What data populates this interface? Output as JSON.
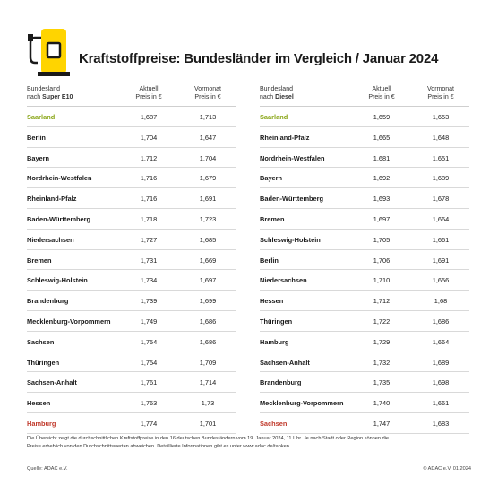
{
  "title": "Kraftstoffpreise: Bundesländer im Vergleich / Januar 2024",
  "icon": "fuel-pump-icon",
  "colors": {
    "accent_yellow": "#FFD400",
    "best": "#8AA618",
    "worst": "#C0392B"
  },
  "left": {
    "header": {
      "col1_line1": "Bundesland",
      "col1_line2": "nach",
      "col1_fuel": "Super E10",
      "col2_line1": "Aktuell",
      "col2_line2": "Preis in €",
      "col3_line1": "Vormonat",
      "col3_line2": "Preis in €"
    },
    "rows": [
      {
        "state": "Saarland",
        "current": "1,687",
        "previous": "1,713"
      },
      {
        "state": "Berlin",
        "current": "1,704",
        "previous": "1,647"
      },
      {
        "state": "Bayern",
        "current": "1,712",
        "previous": "1,704"
      },
      {
        "state": "Nordrhein-Westfalen",
        "current": "1,716",
        "previous": "1,679"
      },
      {
        "state": "Rheinland-Pfalz",
        "current": "1,716",
        "previous": "1,691"
      },
      {
        "state": "Baden-Württemberg",
        "current": "1,718",
        "previous": "1,723"
      },
      {
        "state": "Niedersachsen",
        "current": "1,727",
        "previous": "1,685"
      },
      {
        "state": "Bremen",
        "current": "1,731",
        "previous": "1,669"
      },
      {
        "state": "Schleswig-Holstein",
        "current": "1,734",
        "previous": "1,697"
      },
      {
        "state": "Brandenburg",
        "current": "1,739",
        "previous": "1,699"
      },
      {
        "state": "Mecklenburg-Vorpommern",
        "current": "1,749",
        "previous": "1,686"
      },
      {
        "state": "Sachsen",
        "current": "1,754",
        "previous": "1,686"
      },
      {
        "state": "Thüringen",
        "current": "1,754",
        "previous": "1,709"
      },
      {
        "state": "Sachsen-Anhalt",
        "current": "1,761",
        "previous": "1,714"
      },
      {
        "state": "Hessen",
        "current": "1,763",
        "previous": "1,73"
      },
      {
        "state": "Hamburg",
        "current": "1,774",
        "previous": "1,701"
      }
    ]
  },
  "right": {
    "header": {
      "col1_line1": "Bundesland",
      "col1_line2": "nach",
      "col1_fuel": "Diesel",
      "col2_line1": "Aktuell",
      "col2_line2": "Preis in €",
      "col3_line1": "Vormonat",
      "col3_line2": "Preis in €"
    },
    "rows": [
      {
        "state": "Saarland",
        "current": "1,659",
        "previous": "1,653"
      },
      {
        "state": "Rheinland-Pfalz",
        "current": "1,665",
        "previous": "1,648"
      },
      {
        "state": "Nordrhein-Westfalen",
        "current": "1,681",
        "previous": "1,651"
      },
      {
        "state": "Bayern",
        "current": "1,692",
        "previous": "1,689"
      },
      {
        "state": "Baden-Württemberg",
        "current": "1,693",
        "previous": "1,678"
      },
      {
        "state": "Bremen",
        "current": "1,697",
        "previous": "1,664"
      },
      {
        "state": "Schleswig-Holstein",
        "current": "1,705",
        "previous": "1,661"
      },
      {
        "state": "Berlin",
        "current": "1,706",
        "previous": "1,691"
      },
      {
        "state": "Niedersachsen",
        "current": "1,710",
        "previous": "1,656"
      },
      {
        "state": "Hessen",
        "current": "1,712",
        "previous": "1,68"
      },
      {
        "state": "Thüringen",
        "current": "1,722",
        "previous": "1,686"
      },
      {
        "state": "Hamburg",
        "current": "1,729",
        "previous": "1,664"
      },
      {
        "state": "Sachsen-Anhalt",
        "current": "1,732",
        "previous": "1,689"
      },
      {
        "state": "Brandenburg",
        "current": "1,735",
        "previous": "1,698"
      },
      {
        "state": "Mecklenburg-Vorpommern",
        "current": "1,740",
        "previous": "1,661"
      },
      {
        "state": "Sachsen",
        "current": "1,747",
        "previous": "1,683"
      }
    ]
  },
  "footnote_line1": "Die Übersicht zeigt die durchschnittlichen Kraftstoffpreise in den 16 deutschen Bundesländern vom 19. Januar 2024, 11 Uhr. Je nach Stadt oder Region können die",
  "footnote_line2": "Preise erheblich von den Durchschnittswerten abweichen. Detaillierte Informationen gibt es unter www.adac.de/tanken.",
  "source": "Quelle: ADAC e.V.",
  "copyright": "© ADAC e.V. 01.2024"
}
